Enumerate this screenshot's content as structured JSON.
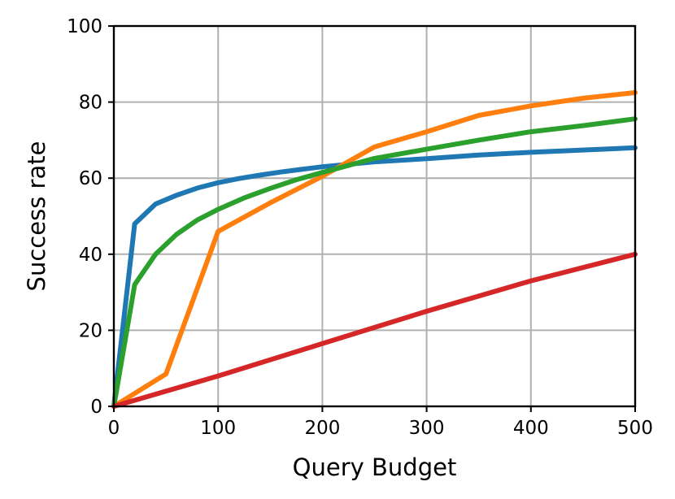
{
  "chart_data": {
    "type": "line",
    "title": "",
    "xlabel": "Query Budget",
    "ylabel": "Success rate",
    "xlim": [
      0,
      500
    ],
    "ylim": [
      0,
      100
    ],
    "xticks": [
      0,
      100,
      200,
      300,
      400,
      500
    ],
    "yticks": [
      0,
      20,
      40,
      60,
      80,
      100
    ],
    "xtick_labels": [
      "0",
      "100",
      "200",
      "300",
      "400",
      "500"
    ],
    "ytick_labels": [
      "0",
      "20",
      "40",
      "60",
      "80",
      "100"
    ],
    "grid": true,
    "series": [
      {
        "color": "#1f77b4",
        "x": [
          0,
          20,
          40,
          60,
          80,
          100,
          120,
          140,
          160,
          180,
          200,
          250,
          300,
          350,
          400,
          450,
          500
        ],
        "y": [
          0,
          48,
          53.2,
          55.5,
          57.4,
          58.8,
          59.9,
          60.8,
          61.6,
          62.3,
          63,
          64.3,
          65.1,
          66.1,
          66.8,
          67.4,
          68
        ]
      },
      {
        "color": "#ff7f0e",
        "x": [
          0,
          50,
          100,
          150,
          200,
          250,
          300,
          350,
          400,
          450,
          500
        ],
        "y": [
          0,
          8.5,
          46,
          53.5,
          60.5,
          68.2,
          72.2,
          76.5,
          79,
          81,
          82.5
        ]
      },
      {
        "color": "#2ca02c",
        "x": [
          0,
          20,
          40,
          60,
          80,
          100,
          125,
          150,
          175,
          200,
          250,
          300,
          350,
          400,
          450,
          500
        ],
        "y": [
          0,
          32,
          40,
          45.2,
          49,
          51.8,
          54.8,
          57.3,
          59.6,
          61.5,
          65.2,
          67.6,
          70,
          72.2,
          73.8,
          75.6
        ]
      },
      {
        "color": "#d62728",
        "x": [
          0,
          100,
          200,
          300,
          400,
          500
        ],
        "y": [
          0,
          8,
          16.5,
          25,
          33,
          40
        ]
      }
    ]
  }
}
